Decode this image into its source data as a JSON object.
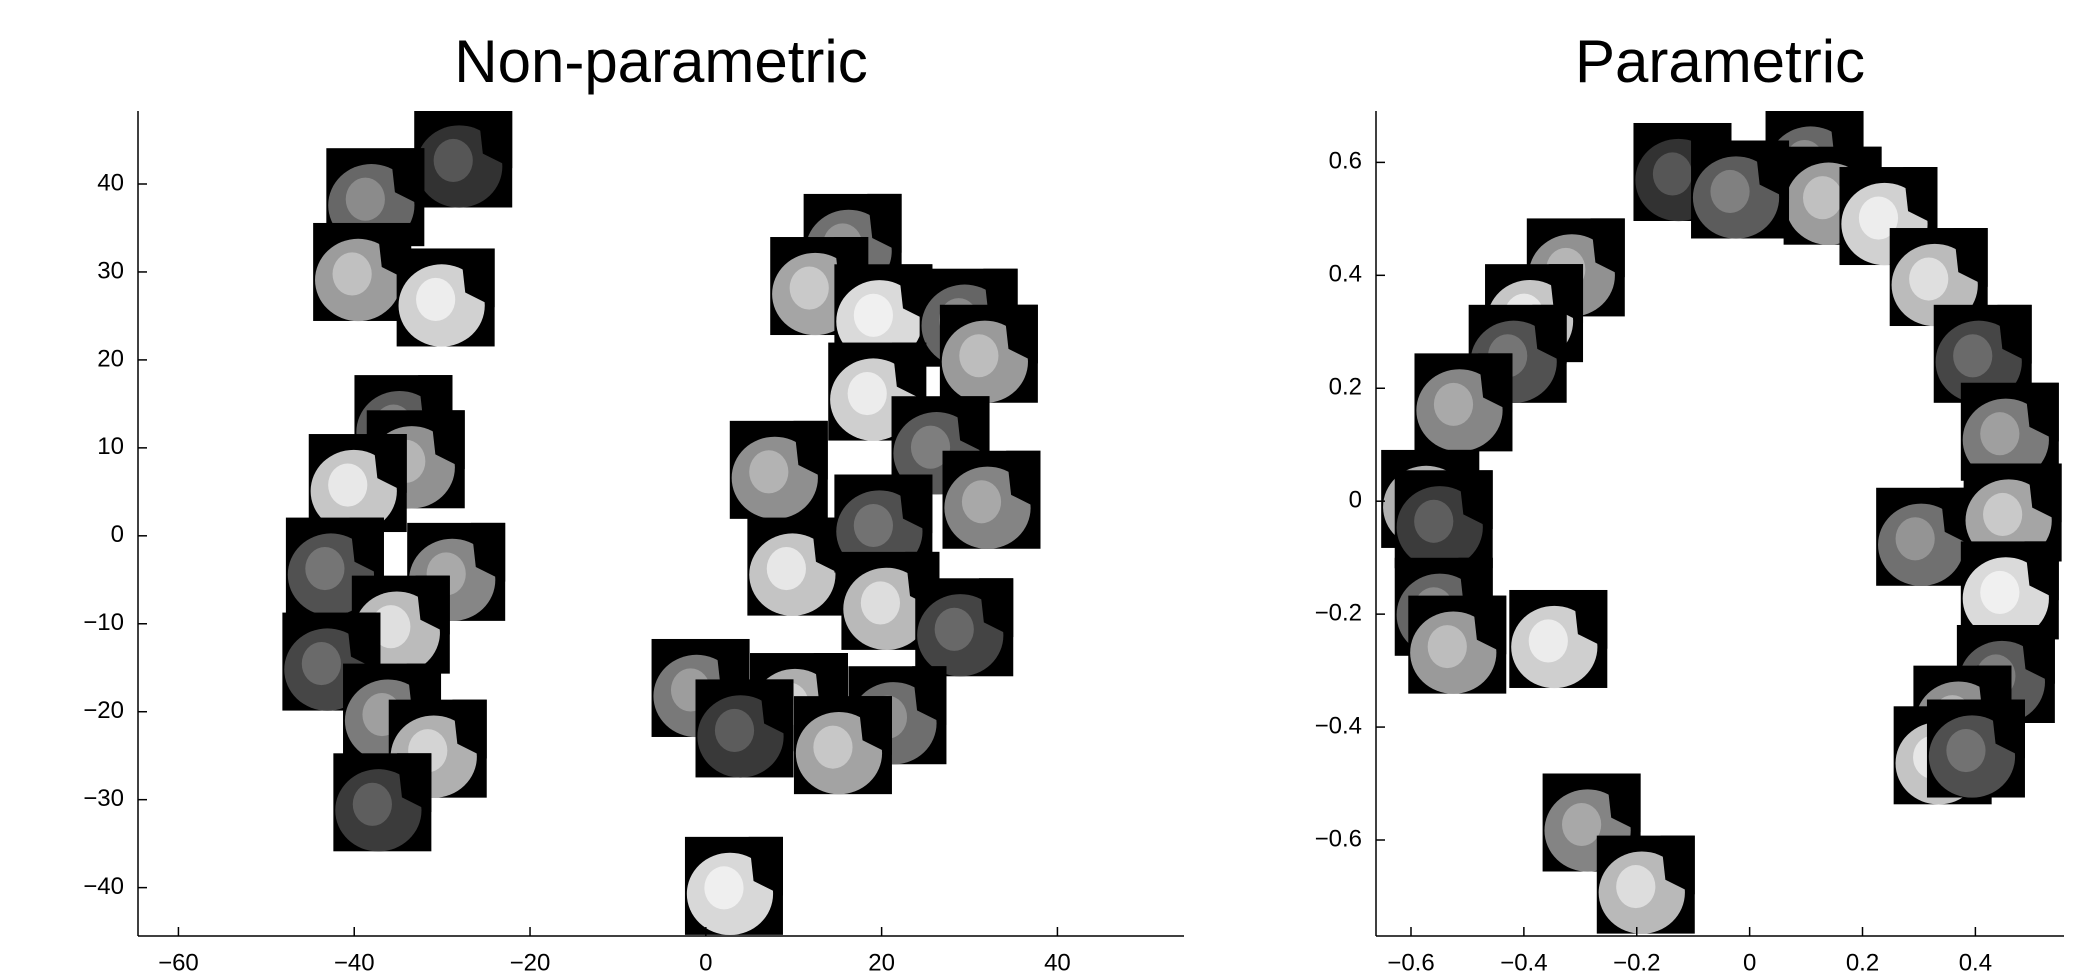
{
  "chart_data": [
    {
      "type": "scatter",
      "title": "Non-parametric",
      "x": [
        -27.6,
        -37.6,
        -39.1,
        -29.6,
        -34.4,
        -33.0,
        -39.6,
        -42.2,
        -28.4,
        -34.7,
        -42.6,
        -35.7,
        -30.5,
        -36.8,
        16.7,
        12.9,
        20.2,
        29.9,
        32.2,
        19.5,
        26.7,
        8.3,
        10.3,
        20.2,
        32.5,
        21.0,
        29.4,
        -0.6,
        10.6,
        4.4,
        21.8,
        15.6,
        3.2
      ],
      "values": [
        42.9,
        38.5,
        30.0,
        27.1,
        12.7,
        8.7,
        6.0,
        -3.5,
        -4.1,
        -10.1,
        -14.3,
        -20.1,
        -24.2,
        -30.3,
        33.3,
        28.4,
        25.3,
        24.8,
        20.7,
        16.4,
        10.3,
        7.5,
        -3.5,
        1.4,
        4.1,
        -7.4,
        -10.4,
        -17.3,
        -18.9,
        -21.9,
        -20.4,
        -23.8,
        -39.8
      ],
      "xlim": [
        -64.6,
        54.4
      ],
      "ylim": [
        -45.5,
        48.3
      ],
      "xticks": [
        {
          "value": -60,
          "label": "−60"
        },
        {
          "value": -40,
          "label": "−40"
        },
        {
          "value": -20,
          "label": "−20"
        },
        0,
        20,
        40
      ],
      "yticks": [
        {
          "value": -40,
          "label": "−40"
        },
        {
          "value": -30,
          "label": "−30"
        },
        {
          "value": -20,
          "label": "−20"
        },
        {
          "value": -10,
          "label": "−10"
        },
        0,
        10,
        20,
        30,
        40
      ],
      "grid": false
    },
    {
      "type": "scatter",
      "title": "Parametric",
      "x": [
        -0.119,
        0.115,
        0.147,
        0.246,
        -0.017,
        -0.308,
        -0.382,
        -0.411,
        -0.507,
        0.335,
        0.413,
        0.461,
        -0.566,
        -0.542,
        0.311,
        0.466,
        0.461,
        -0.542,
        -0.518,
        -0.339,
        0.454,
        0.377,
        0.342,
        0.401,
        -0.28,
        -0.184
      ],
      "values": [
        0.583,
        0.605,
        0.541,
        0.505,
        0.552,
        0.414,
        0.333,
        0.261,
        0.175,
        0.397,
        0.261,
        0.123,
        0.004,
        -0.032,
        -0.063,
        -0.02,
        -0.158,
        -0.187,
        -0.254,
        -0.244,
        -0.306,
        -0.378,
        -0.45,
        -0.438,
        -0.569,
        -0.679
      ],
      "xlim": [
        -0.662,
        0.557
      ],
      "ylim": [
        -0.77,
        0.691
      ],
      "xticks": [
        {
          "value": -0.6,
          "label": "−0.6"
        },
        {
          "value": -0.4,
          "label": "−0.4"
        },
        {
          "value": -0.2,
          "label": "−0.2"
        },
        0,
        0.2,
        0.4
      ],
      "yticks": [
        {
          "value": -0.6,
          "label": "−0.6"
        },
        {
          "value": -0.4,
          "label": "−0.4"
        },
        {
          "value": -0.2,
          "label": "−0.2"
        },
        0,
        0.2,
        0.4,
        0.6
      ],
      "grid": false
    }
  ]
}
